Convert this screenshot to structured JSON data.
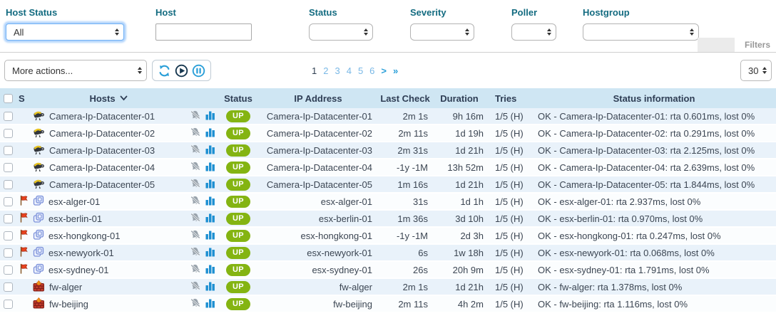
{
  "filters": {
    "host_status": {
      "label": "Host Status",
      "value": "All"
    },
    "host": {
      "label": "Host",
      "value": ""
    },
    "status": {
      "label": "Status",
      "value": ""
    },
    "severity": {
      "label": "Severity",
      "value": ""
    },
    "poller": {
      "label": "Poller",
      "value": ""
    },
    "hostgroup": {
      "label": "Hostgroup",
      "value": ""
    },
    "filters_label": "Filters"
  },
  "toolbar": {
    "more_actions_label": "More actions...",
    "page_size": "30",
    "pagination": {
      "current": "1",
      "pages": [
        "1",
        "2",
        "3",
        "4",
        "5",
        "6"
      ],
      "next_symbol": ">",
      "last_symbol": "»"
    }
  },
  "colors": {
    "label_teal": "#136b80",
    "header_bg": "#cfe6f3",
    "row_odd": "#e9f2fa",
    "row_even": "#fbfdfe",
    "up_green": "#84b412",
    "icon_blue": "#2a9fd8",
    "icon_navy": "#16374f"
  },
  "table": {
    "columns": {
      "severity": "S",
      "hosts": "Hosts",
      "status": "Status",
      "ip": "IP Address",
      "last_check": "Last Check",
      "duration": "Duration",
      "tries": "Tries",
      "info": "Status information"
    },
    "rows": [
      {
        "host": "Camera-Ip-Datacenter-01",
        "icon": "camera",
        "severity_flag": false,
        "status": "UP",
        "ip": "Camera-Ip-Datacenter-01",
        "last_check": "2m 1s",
        "duration": "9h 16m",
        "tries": "1/5 (H)",
        "info": "OK - Camera-Ip-Datacenter-01: rta 0.601ms, lost 0%"
      },
      {
        "host": "Camera-Ip-Datacenter-02",
        "icon": "camera",
        "severity_flag": false,
        "status": "UP",
        "ip": "Camera-Ip-Datacenter-02",
        "last_check": "2m 11s",
        "duration": "1d 19h",
        "tries": "1/5 (H)",
        "info": "OK - Camera-Ip-Datacenter-02: rta 0.291ms, lost 0%"
      },
      {
        "host": "Camera-Ip-Datacenter-03",
        "icon": "camera",
        "severity_flag": false,
        "status": "UP",
        "ip": "Camera-Ip-Datacenter-03",
        "last_check": "2m 31s",
        "duration": "1d 21h",
        "tries": "1/5 (H)",
        "info": "OK - Camera-Ip-Datacenter-03: rta 2.125ms, lost 0%"
      },
      {
        "host": "Camera-Ip-Datacenter-04",
        "icon": "camera",
        "severity_flag": false,
        "status": "UP",
        "ip": "Camera-Ip-Datacenter-04",
        "last_check": "-1y -1M",
        "duration": "13h 52m",
        "tries": "1/5 (H)",
        "info": "OK - Camera-Ip-Datacenter-04: rta 2.639ms, lost 0%"
      },
      {
        "host": "Camera-Ip-Datacenter-05",
        "icon": "camera",
        "severity_flag": false,
        "status": "UP",
        "ip": "Camera-Ip-Datacenter-05",
        "last_check": "1m 16s",
        "duration": "1d 21h",
        "tries": "1/5 (H)",
        "info": "OK - Camera-Ip-Datacenter-05: rta 1.844ms, lost 0%"
      },
      {
        "host": "esx-alger-01",
        "icon": "vm",
        "severity_flag": true,
        "status": "UP",
        "ip": "esx-alger-01",
        "last_check": "31s",
        "duration": "1d 1h",
        "tries": "1/5 (H)",
        "info": "OK - esx-alger-01: rta 2.937ms, lost 0%"
      },
      {
        "host": "esx-berlin-01",
        "icon": "vm",
        "severity_flag": true,
        "status": "UP",
        "ip": "esx-berlin-01",
        "last_check": "1m 36s",
        "duration": "3d 10h",
        "tries": "1/5 (H)",
        "info": "OK - esx-berlin-01: rta 0.970ms, lost 0%"
      },
      {
        "host": "esx-hongkong-01",
        "icon": "vm",
        "severity_flag": true,
        "status": "UP",
        "ip": "esx-hongkong-01",
        "last_check": "-1y -1M",
        "duration": "2d 3h",
        "tries": "1/5 (H)",
        "info": "OK - esx-hongkong-01: rta 0.247ms, lost 0%"
      },
      {
        "host": "esx-newyork-01",
        "icon": "vm",
        "severity_flag": true,
        "status": "UP",
        "ip": "esx-newyork-01",
        "last_check": "6s",
        "duration": "1w 18h",
        "tries": "1/5 (H)",
        "info": "OK - esx-newyork-01: rta 0.068ms, lost 0%"
      },
      {
        "host": "esx-sydney-01",
        "icon": "vm",
        "severity_flag": true,
        "status": "UP",
        "ip": "esx-sydney-01",
        "last_check": "26s",
        "duration": "20h 9m",
        "tries": "1/5 (H)",
        "info": "OK - esx-sydney-01: rta 1.791ms, lost 0%"
      },
      {
        "host": "fw-alger",
        "icon": "firewall",
        "severity_flag": false,
        "status": "UP",
        "ip": "fw-alger",
        "last_check": "2m 1s",
        "duration": "1d 21h",
        "tries": "1/5 (H)",
        "info": "OK - fw-alger: rta 1.378ms, lost 0%"
      },
      {
        "host": "fw-beijing",
        "icon": "firewall",
        "severity_flag": false,
        "status": "UP",
        "ip": "fw-beijing",
        "last_check": "2m 11s",
        "duration": "4h 2m",
        "tries": "1/5 (H)",
        "info": "OK - fw-beijing: rta 1.116ms, lost 0%"
      }
    ]
  }
}
